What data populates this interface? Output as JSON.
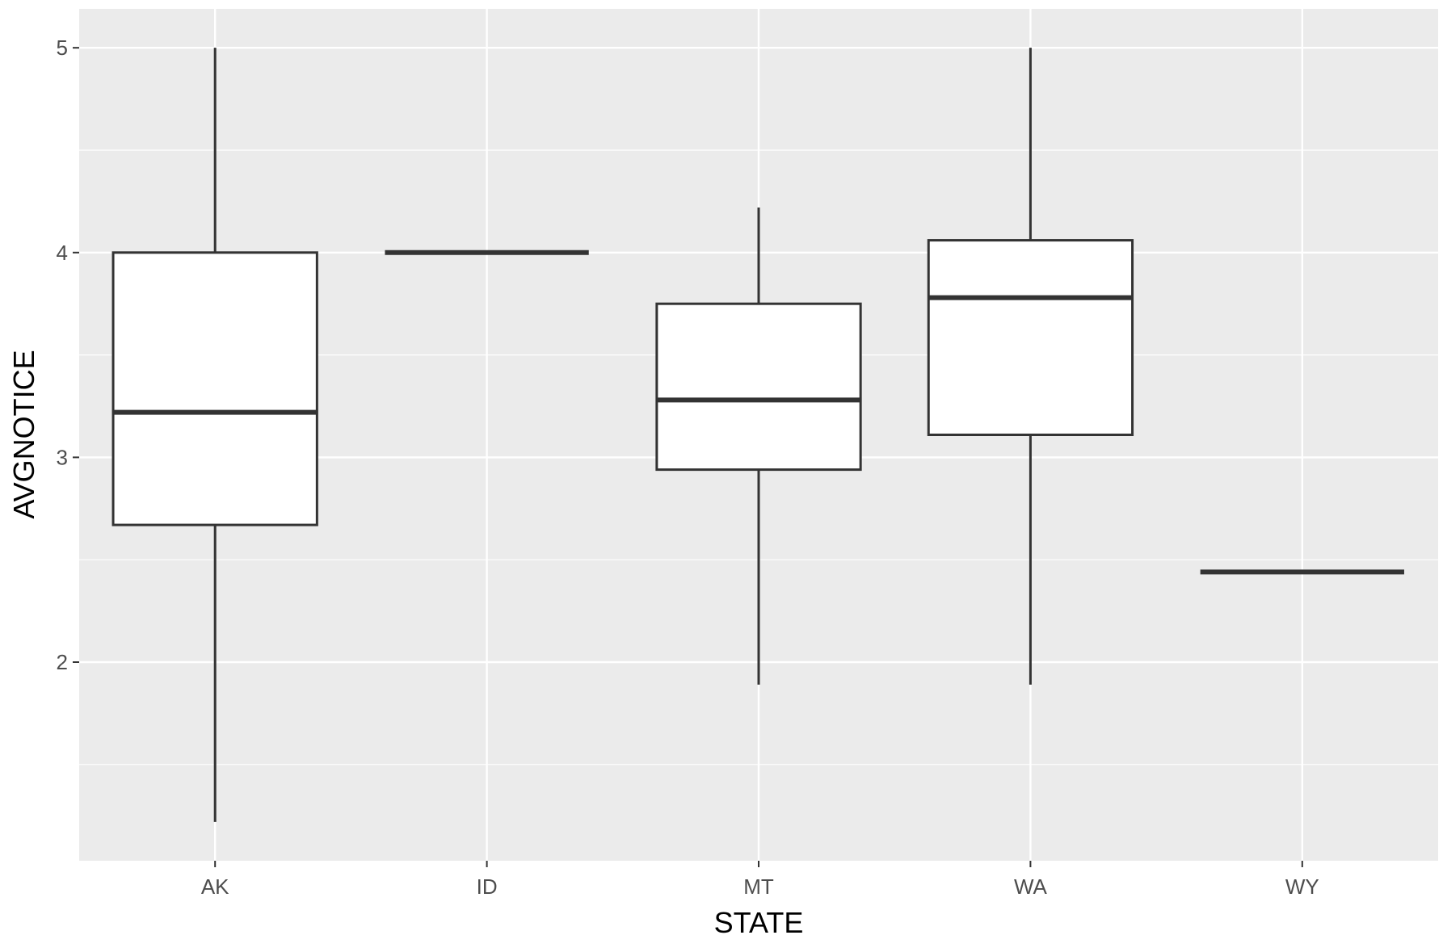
{
  "chart_data": {
    "type": "box",
    "title": "",
    "xlabel": "STATE",
    "ylabel": "AVGNOTICE",
    "categories": [
      "AK",
      "ID",
      "MT",
      "WA",
      "WY"
    ],
    "boxes": [
      {
        "category": "AK",
        "min": 1.22,
        "q1": 2.67,
        "median": 3.22,
        "q3": 4.0,
        "max": 5.0
      },
      {
        "category": "ID",
        "min": 4.0,
        "q1": 4.0,
        "median": 4.0,
        "q3": 4.0,
        "max": 4.0
      },
      {
        "category": "MT",
        "min": 1.89,
        "q1": 2.94,
        "median": 3.28,
        "q3": 3.75,
        "max": 4.22
      },
      {
        "category": "WA",
        "min": 1.89,
        "q1": 3.11,
        "median": 3.78,
        "q3": 4.06,
        "max": 5.0
      },
      {
        "category": "WY",
        "min": 2.44,
        "q1": 2.44,
        "median": 2.44,
        "q3": 2.44,
        "max": 2.44
      }
    ],
    "ylim": [
      1.03,
      5.19
    ],
    "yticks": [
      2,
      3,
      4,
      5
    ],
    "ytick_labels": [
      "2",
      "3",
      "4",
      "5"
    ],
    "grid": true,
    "legend": "none",
    "colors": {
      "panel": "#ebebeb",
      "grid_major": "#ffffff",
      "box_fill": "#ffffff",
      "box_stroke": "#333333",
      "tick_text": "#4d4d4d"
    }
  }
}
